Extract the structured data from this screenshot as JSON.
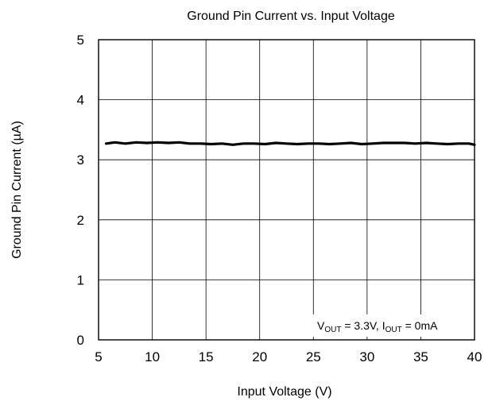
{
  "chart_data": {
    "type": "line",
    "title": "Ground Pin Current vs. Input Voltage",
    "xlabel": "Input Voltage (V)",
    "ylabel": "Ground Pin Current (µA)",
    "xlim": [
      5,
      40
    ],
    "ylim": [
      0,
      5
    ],
    "xticks": [
      5,
      10,
      15,
      20,
      25,
      30,
      35,
      40
    ],
    "yticks": [
      0,
      1,
      2,
      3,
      4,
      5
    ],
    "grid": true,
    "annotation": {
      "v_main": "V",
      "v_sub": "OUT",
      "mid": " = 3.3V, I",
      "i_sub": "OUT",
      "tail": " = 0mA"
    },
    "series": [
      {
        "color": "#000000",
        "x": [
          5.7,
          6.5,
          7.5,
          8.5,
          9.5,
          10.5,
          11.5,
          12.5,
          13.5,
          14.5,
          15.5,
          16.5,
          17.5,
          18.5,
          19.5,
          20.5,
          21.5,
          22.5,
          23.5,
          24.5,
          25.5,
          26.5,
          27.5,
          28.5,
          29.5,
          30.5,
          31.5,
          32.5,
          33.5,
          34.5,
          35.5,
          36.5,
          37.5,
          38.5,
          39.5,
          40
        ],
        "y": [
          3.27,
          3.29,
          3.27,
          3.29,
          3.28,
          3.29,
          3.28,
          3.29,
          3.27,
          3.27,
          3.26,
          3.27,
          3.25,
          3.27,
          3.27,
          3.26,
          3.28,
          3.27,
          3.26,
          3.27,
          3.27,
          3.26,
          3.27,
          3.28,
          3.26,
          3.27,
          3.28,
          3.28,
          3.28,
          3.27,
          3.28,
          3.27,
          3.26,
          3.27,
          3.27,
          3.25
        ]
      }
    ]
  }
}
